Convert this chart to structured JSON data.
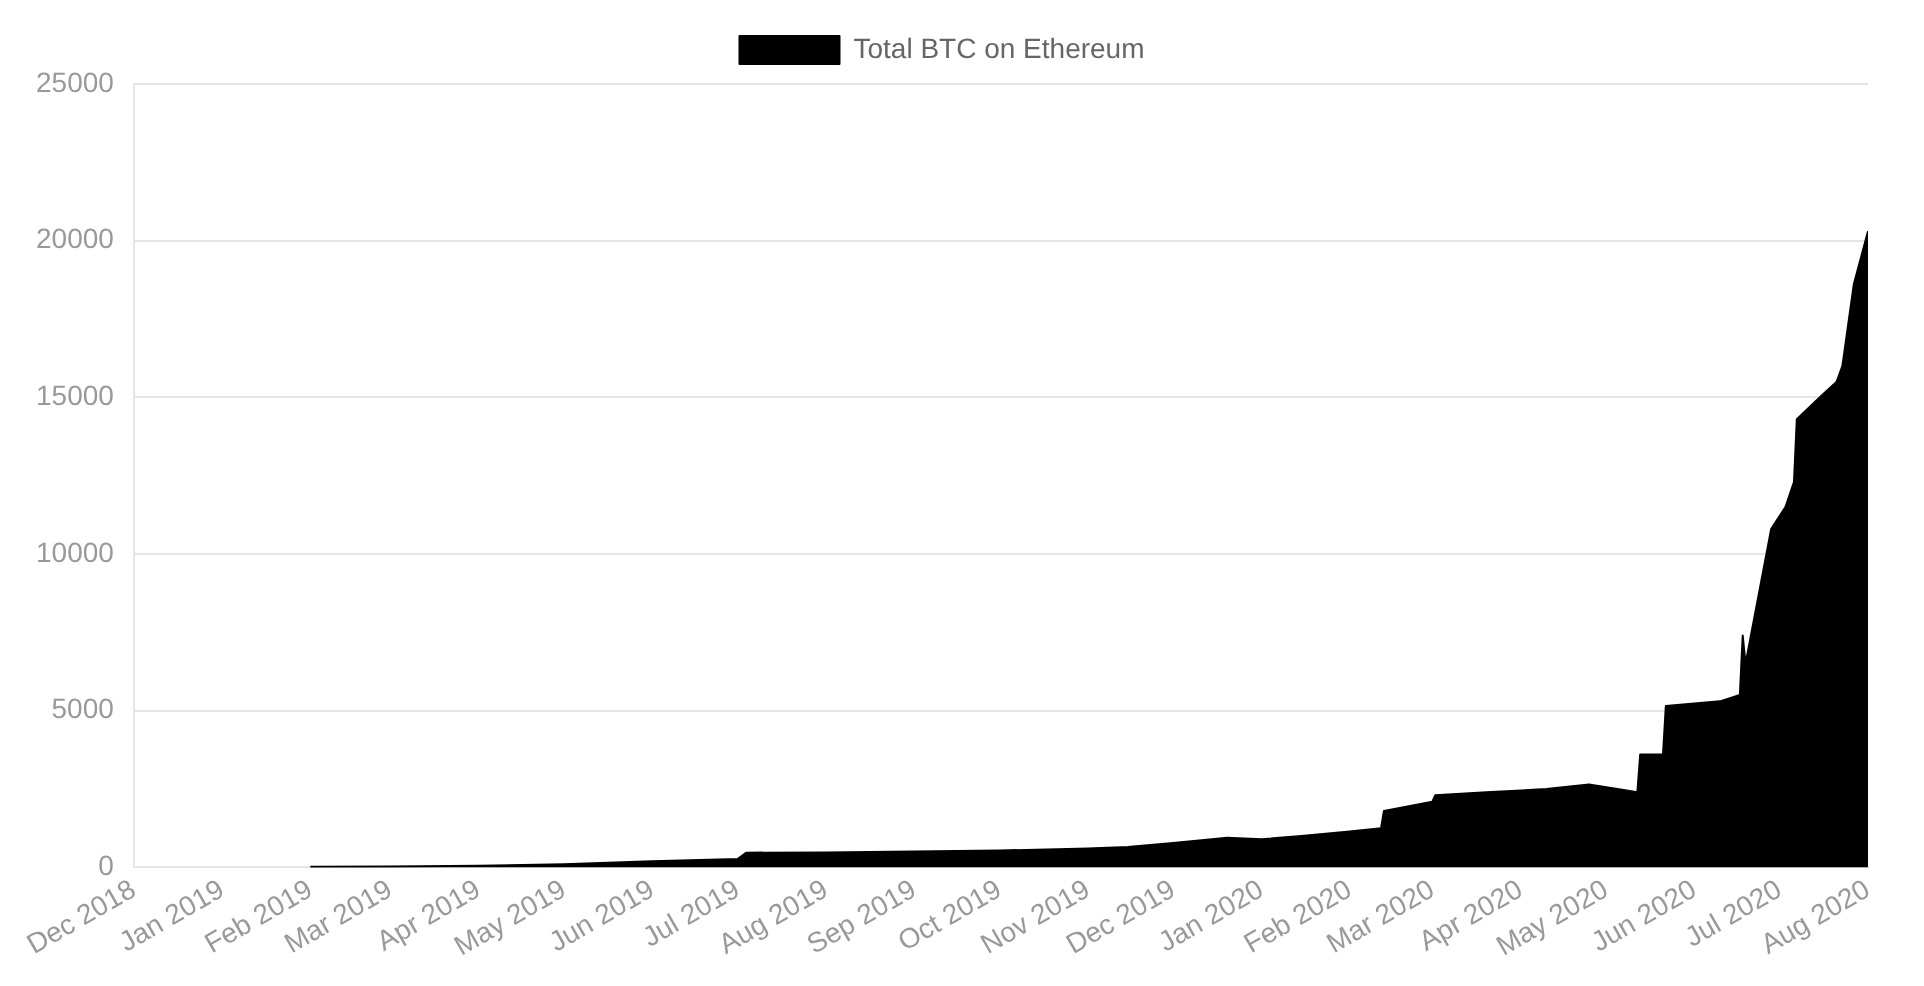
{
  "chart_data": {
    "type": "area",
    "x": [
      "2019-02-01",
      "2019-03-01",
      "2019-04-01",
      "2019-05-01",
      "2019-06-01",
      "2019-07-01",
      "2019-07-04",
      "2019-08-01",
      "2019-09-01",
      "2019-10-01",
      "2019-11-01",
      "2019-11-15",
      "2019-12-01",
      "2019-12-20",
      "2020-01-01",
      "2020-01-15",
      "2020-02-01",
      "2020-02-12",
      "2020-02-13",
      "2020-03-01",
      "2020-03-02",
      "2020-03-20",
      "2020-04-10",
      "2020-04-25",
      "2020-05-05",
      "2020-05-12",
      "2020-05-13",
      "2020-05-21",
      "2020-05-22",
      "2020-06-10",
      "2020-06-17",
      "2020-06-18",
      "2020-06-19",
      "2020-06-28",
      "2020-07-03",
      "2020-07-06",
      "2020-07-07",
      "2020-07-15",
      "2020-07-21",
      "2020-07-23",
      "2020-07-27",
      "2020-08-01"
    ],
    "series": [
      {
        "name": "Total BTC on Ethereum",
        "color": "#000000",
        "values": [
          20,
          30,
          50,
          100,
          200,
          270,
          470,
          480,
          510,
          540,
          600,
          650,
          780,
          950,
          900,
          1000,
          1150,
          1250,
          1800,
          2100,
          2300,
          2400,
          2500,
          2650,
          2500,
          2400,
          3600,
          3600,
          5150,
          5300,
          5500,
          7400,
          6500,
          10800,
          11500,
          12300,
          14300,
          15000,
          15500,
          16000,
          18600,
          20300
        ]
      }
    ],
    "xlim": [
      "2018-12-01",
      "2020-08-01"
    ],
    "xticks": [
      {
        "value": "2018-12-01",
        "label": "Dec 2018"
      },
      {
        "value": "2019-01-01",
        "label": "Jan 2019"
      },
      {
        "value": "2019-02-01",
        "label": "Feb 2019"
      },
      {
        "value": "2019-03-01",
        "label": "Mar 2019"
      },
      {
        "value": "2019-04-01",
        "label": "Apr 2019"
      },
      {
        "value": "2019-05-01",
        "label": "May 2019"
      },
      {
        "value": "2019-06-01",
        "label": "Jun 2019"
      },
      {
        "value": "2019-07-01",
        "label": "Jul 2019"
      },
      {
        "value": "2019-08-01",
        "label": "Aug 2019"
      },
      {
        "value": "2019-09-01",
        "label": "Sep 2019"
      },
      {
        "value": "2019-10-01",
        "label": "Oct 2019"
      },
      {
        "value": "2019-11-01",
        "label": "Nov 2019"
      },
      {
        "value": "2019-12-01",
        "label": "Dec 2019"
      },
      {
        "value": "2020-01-01",
        "label": "Jan 2020"
      },
      {
        "value": "2020-02-01",
        "label": "Feb 2020"
      },
      {
        "value": "2020-03-01",
        "label": "Mar 2020"
      },
      {
        "value": "2020-04-01",
        "label": "Apr 2020"
      },
      {
        "value": "2020-05-01",
        "label": "May 2020"
      },
      {
        "value": "2020-06-01",
        "label": "Jun 2020"
      },
      {
        "value": "2020-07-01",
        "label": "Jul 2020"
      },
      {
        "value": "2020-08-01",
        "label": "Aug 2020"
      }
    ],
    "ylim": [
      0,
      25000
    ],
    "yticks": [
      0,
      5000,
      10000,
      15000,
      20000,
      25000
    ],
    "grid": "y",
    "legend": "top",
    "marker": "none"
  }
}
